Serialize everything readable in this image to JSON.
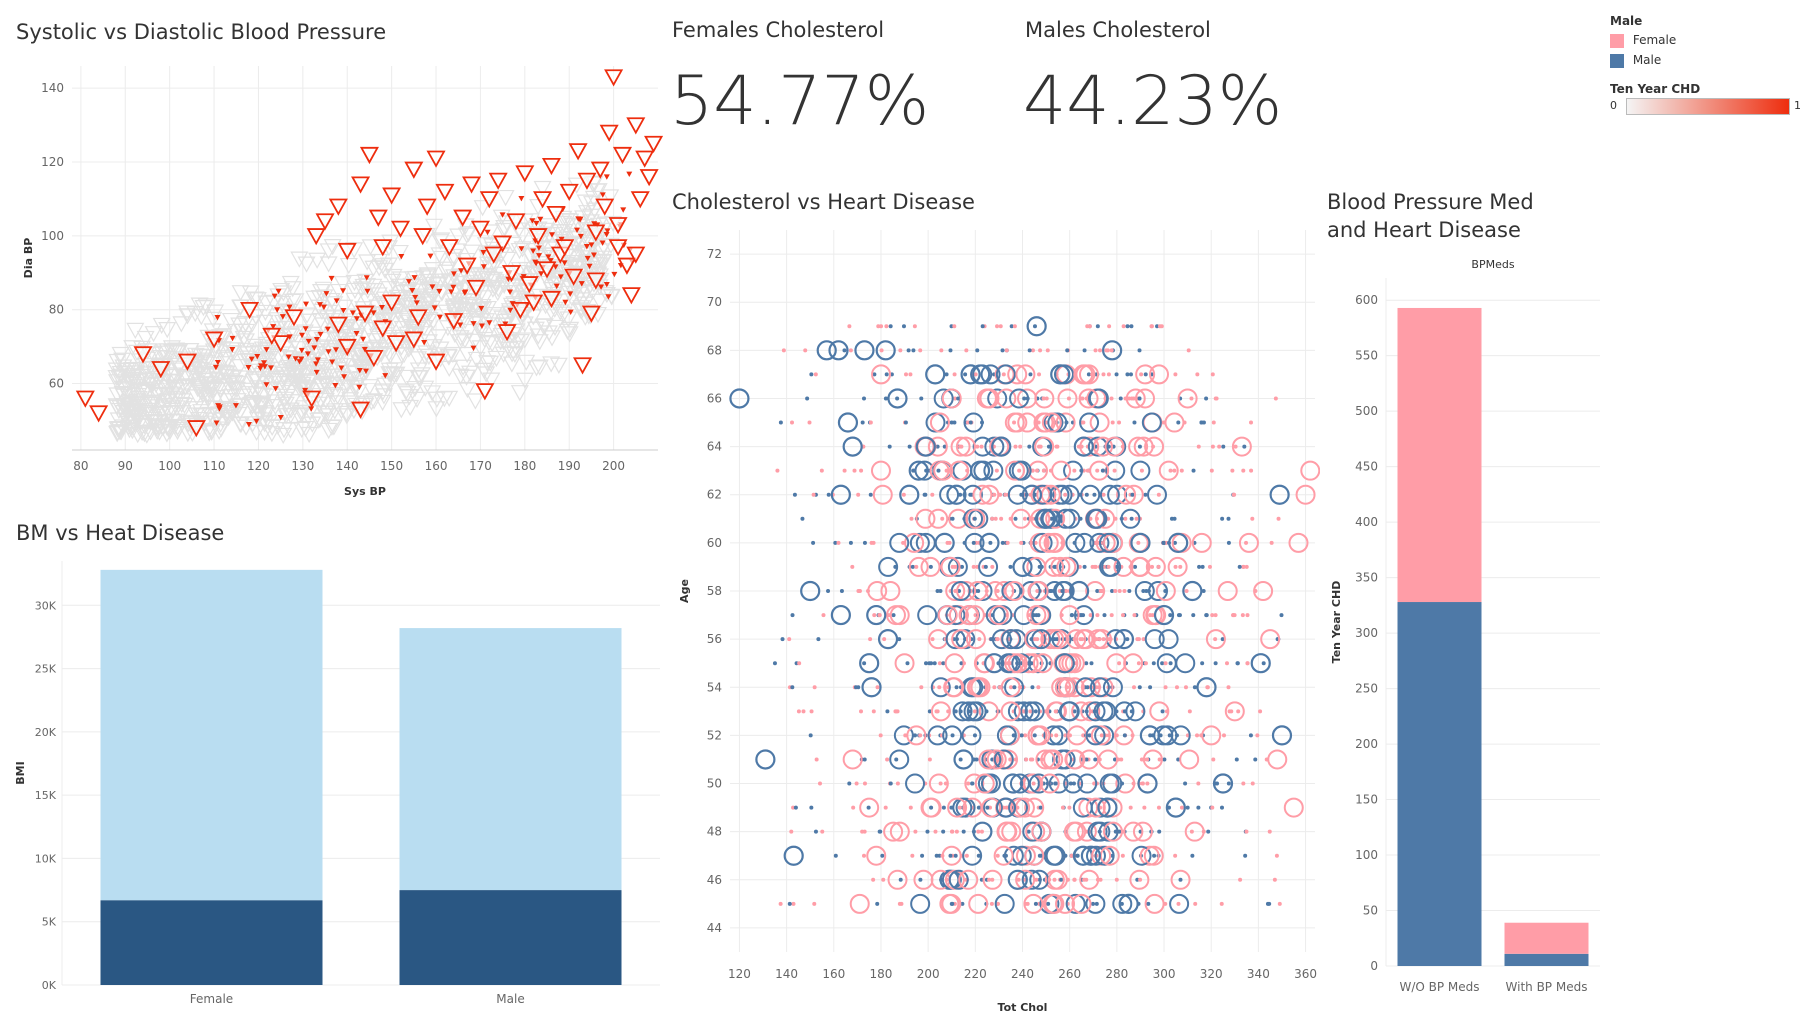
{
  "colors": {
    "female": "#ff9da7",
    "male": "#4e79a7",
    "chd_low": "#f0f0f0",
    "chd_high": "#ee2d0e",
    "bmi_light": "#b9ddf1",
    "bmi_dark": "#2a5783",
    "grid": "#ececec",
    "text": "#333333"
  },
  "legend": {
    "male_title": "Male",
    "items": [
      {
        "label": "Female",
        "color": "#ff9da7"
      },
      {
        "label": "Male",
        "color": "#4e79a7"
      }
    ],
    "chd_title": "Ten Year CHD",
    "chd_min": "0",
    "chd_max": "1"
  },
  "kpis": {
    "female_title": "Females Cholesterol",
    "female_value": "54.77%",
    "male_title": "Males Cholesterol",
    "male_value": "44.23%"
  },
  "chart_data": [
    {
      "id": "bp",
      "type": "scatter",
      "title": "Systolic vs Diastolic Blood Pressure",
      "xlabel": "Sys BP",
      "ylabel": "Dia BP",
      "xlim": [
        78,
        210
      ],
      "ylim": [
        42,
        146
      ],
      "xticks": [
        80,
        90,
        100,
        110,
        120,
        130,
        140,
        150,
        160,
        170,
        180,
        190,
        200
      ],
      "yticks": [
        60,
        80,
        100,
        120,
        140
      ],
      "marker": "triangle-down",
      "color_by": "Ten Year CHD",
      "points_chd1": [
        [
          81,
          56
        ],
        [
          84,
          52
        ],
        [
          106,
          48
        ],
        [
          125,
          71
        ],
        [
          132,
          56
        ],
        [
          140,
          70
        ],
        [
          143,
          53
        ],
        [
          146,
          67
        ],
        [
          148,
          75
        ],
        [
          151,
          71
        ],
        [
          155,
          72
        ],
        [
          160,
          66
        ],
        [
          171,
          58
        ],
        [
          176,
          74
        ],
        [
          181,
          87
        ],
        [
          182,
          82
        ],
        [
          185,
          91
        ],
        [
          188,
          95
        ],
        [
          191,
          89
        ],
        [
          193,
          65
        ],
        [
          195,
          79
        ],
        [
          196,
          101
        ],
        [
          198,
          108
        ],
        [
          201,
          97
        ],
        [
          203,
          92
        ],
        [
          204,
          84
        ],
        [
          205,
          95
        ],
        [
          206,
          110
        ],
        [
          208,
          116
        ],
        [
          209,
          125
        ],
        [
          200,
          143
        ],
        [
          205,
          130
        ],
        [
          199,
          128
        ],
        [
          192,
          123
        ],
        [
          186,
          119
        ],
        [
          180,
          117
        ],
        [
          174,
          115
        ],
        [
          168,
          114
        ],
        [
          160,
          121
        ],
        [
          155,
          118
        ],
        [
          150,
          111
        ],
        [
          143,
          114
        ],
        [
          133,
          100
        ],
        [
          135,
          104
        ],
        [
          138,
          108
        ],
        [
          145,
          122
        ],
        [
          147,
          105
        ],
        [
          152,
          102
        ],
        [
          158,
          108
        ],
        [
          163,
          97
        ],
        [
          166,
          105
        ],
        [
          170,
          102
        ],
        [
          172,
          110
        ],
        [
          175,
          98
        ],
        [
          178,
          104
        ],
        [
          183,
          100
        ],
        [
          187,
          106
        ],
        [
          190,
          112
        ],
        [
          194,
          115
        ],
        [
          197,
          118
        ],
        [
          202,
          122
        ],
        [
          207,
          121
        ],
        [
          140,
          96
        ],
        [
          148,
          97
        ],
        [
          157,
          100
        ],
        [
          162,
          112
        ],
        [
          167,
          92
        ],
        [
          173,
          95
        ],
        [
          177,
          90
        ],
        [
          184,
          110
        ],
        [
          189,
          97
        ],
        [
          196,
          88
        ],
        [
          201,
          103
        ],
        [
          186,
          83
        ],
        [
          179,
          80
        ],
        [
          169,
          86
        ],
        [
          164,
          77
        ],
        [
          156,
          78
        ],
        [
          150,
          82
        ],
        [
          144,
          79
        ],
        [
          138,
          76
        ],
        [
          128,
          78
        ],
        [
          123,
          73
        ],
        [
          118,
          80
        ],
        [
          110,
          72
        ],
        [
          104,
          66
        ],
        [
          98,
          64
        ],
        [
          94,
          68
        ]
      ],
      "cloud_chd0": {
        "description_values": "dense cloud of Ten Year CHD = 0 points, Sys BP 85-205, Dia BP 50-135"
      }
    },
    {
      "id": "bmi",
      "type": "bar",
      "title": "BM vs Heat Disease",
      "ylabel": "BMI",
      "categories": [
        "Female",
        "Male"
      ],
      "series": [
        {
          "name": "Ten Year CHD = 1",
          "values": [
            6700,
            7500
          ],
          "color": "#2a5783"
        },
        {
          "name": "Ten Year CHD = 0",
          "values": [
            26100,
            20700
          ],
          "color": "#b9ddf1"
        }
      ],
      "ylim": [
        0,
        33500
      ],
      "yticks": [
        0,
        5000,
        10000,
        15000,
        20000,
        25000,
        30000
      ],
      "ytick_labels": [
        "0K",
        "5K",
        "10K",
        "15K",
        "20K",
        "25K",
        "30K"
      ],
      "stacked": true
    },
    {
      "id": "chol",
      "type": "scatter",
      "title": "Cholesterol vs Heart Disease",
      "xlabel": "Tot Chol",
      "ylabel": "Age",
      "xlim": [
        116,
        364
      ],
      "ylim": [
        43,
        73
      ],
      "xticks": [
        120,
        140,
        160,
        180,
        200,
        220,
        240,
        260,
        280,
        300,
        320,
        340,
        360
      ],
      "yticks": [
        44,
        46,
        48,
        50,
        52,
        54,
        56,
        58,
        60,
        62,
        64,
        66,
        68,
        70,
        72
      ],
      "size_by": "Ten Year CHD",
      "color_by": "Male",
      "ages": [
        45,
        46,
        47,
        48,
        49,
        50,
        51,
        52,
        53,
        54,
        55,
        56,
        57,
        58,
        59,
        60,
        61,
        62,
        63,
        64,
        65,
        66,
        67,
        68,
        69,
        70
      ],
      "points_male_chd1": [
        [
          120,
          66
        ],
        [
          131,
          51
        ],
        [
          143,
          47
        ],
        [
          150,
          58
        ],
        [
          157,
          68
        ],
        [
          162,
          68
        ],
        [
          163,
          62
        ],
        [
          163,
          57
        ],
        [
          166,
          65
        ],
        [
          168,
          64
        ],
        [
          173,
          68
        ],
        [
          175,
          55
        ],
        [
          176,
          54
        ],
        [
          178,
          57
        ],
        [
          182,
          68
        ],
        [
          183,
          56
        ],
        [
          187,
          66
        ],
        [
          192,
          62
        ],
        [
          196,
          63
        ],
        [
          199,
          64
        ],
        [
          203,
          67
        ],
        [
          207,
          60
        ],
        [
          212,
          62
        ],
        [
          215,
          51
        ],
        [
          218,
          67
        ],
        [
          222,
          63
        ],
        [
          226,
          60
        ],
        [
          231,
          64
        ],
        [
          236,
          50
        ],
        [
          240,
          59
        ],
        [
          244,
          62
        ],
        [
          246,
          69
        ],
        [
          250,
          61
        ],
        [
          256,
          67
        ],
        [
          260,
          53
        ],
        [
          264,
          58
        ],
        [
          266,
          64
        ],
        [
          271,
          61
        ],
        [
          278,
          68
        ],
        [
          283,
          56
        ],
        [
          290,
          60
        ],
        [
          294,
          52
        ],
        [
          300,
          57
        ],
        [
          306,
          60
        ],
        [
          312,
          58
        ],
        [
          318,
          54
        ],
        [
          325,
          50
        ],
        [
          341,
          55
        ],
        [
          349,
          62
        ],
        [
          350,
          52
        ],
        [
          223,
          48
        ],
        [
          228,
          55
        ],
        [
          233,
          49
        ],
        [
          238,
          46
        ],
        [
          254,
          47
        ],
        [
          269,
          47
        ],
        [
          276,
          49
        ],
        [
          285,
          45
        ],
        [
          293,
          50
        ],
        [
          305,
          49
        ]
      ],
      "points_female_chd1": [
        [
          171,
          45
        ],
        [
          175,
          49
        ],
        [
          180,
          63
        ],
        [
          184,
          58
        ],
        [
          190,
          55
        ],
        [
          195,
          52
        ],
        [
          201,
          59
        ],
        [
          205,
          65
        ],
        [
          210,
          66
        ],
        [
          214,
          56
        ],
        [
          220,
          61
        ],
        [
          224,
          50
        ],
        [
          230,
          57
        ],
        [
          235,
          53
        ],
        [
          242,
          65
        ],
        [
          248,
          48
        ],
        [
          252,
          62
        ],
        [
          258,
          54
        ],
        [
          262,
          51
        ],
        [
          268,
          66
        ],
        [
          272,
          56
        ],
        [
          279,
          64
        ],
        [
          283,
          52
        ],
        [
          288,
          66
        ],
        [
          292,
          67
        ],
        [
          298,
          53
        ],
        [
          302,
          63
        ],
        [
          310,
          66
        ],
        [
          316,
          60
        ],
        [
          322,
          56
        ],
        [
          330,
          53
        ],
        [
          336,
          60
        ],
        [
          342,
          58
        ],
        [
          348,
          51
        ],
        [
          355,
          49
        ],
        [
          360,
          62
        ],
        [
          362,
          63
        ],
        [
          357,
          60
        ],
        [
          345,
          56
        ],
        [
          333,
          64
        ],
        [
          327,
          58
        ],
        [
          320,
          52
        ],
        [
          313,
          48
        ],
        [
          307,
          46
        ],
        [
          296,
          45
        ],
        [
          287,
          48
        ],
        [
          277,
          47
        ],
        [
          265,
          45
        ],
        [
          255,
          46
        ],
        [
          245,
          47
        ],
        [
          239,
          49
        ],
        [
          232,
          47
        ],
        [
          217,
          46
        ],
        [
          209,
          45
        ],
        [
          198,
          46
        ],
        [
          188,
          48
        ],
        [
          178,
          47
        ],
        [
          168,
          51
        ],
        [
          216,
          64
        ],
        [
          226,
          66
        ]
      ]
    },
    {
      "id": "bpmeds",
      "type": "bar",
      "title": "Blood Pressure Med and Heart Disease",
      "header": "BPMeds",
      "ylabel": "Ten Year CHD",
      "categories": [
        "W/O BP Meds",
        "With BP Meds"
      ],
      "series": [
        {
          "name": "Male",
          "values": [
            328,
            11
          ],
          "color": "#4e79a7"
        },
        {
          "name": "Female",
          "values": [
            265,
            28
          ],
          "color": "#ff9da7"
        }
      ],
      "ylim": [
        0,
        620
      ],
      "yticks": [
        0,
        50,
        100,
        150,
        200,
        250,
        300,
        350,
        400,
        450,
        500,
        550,
        600
      ],
      "stacked": true
    }
  ]
}
